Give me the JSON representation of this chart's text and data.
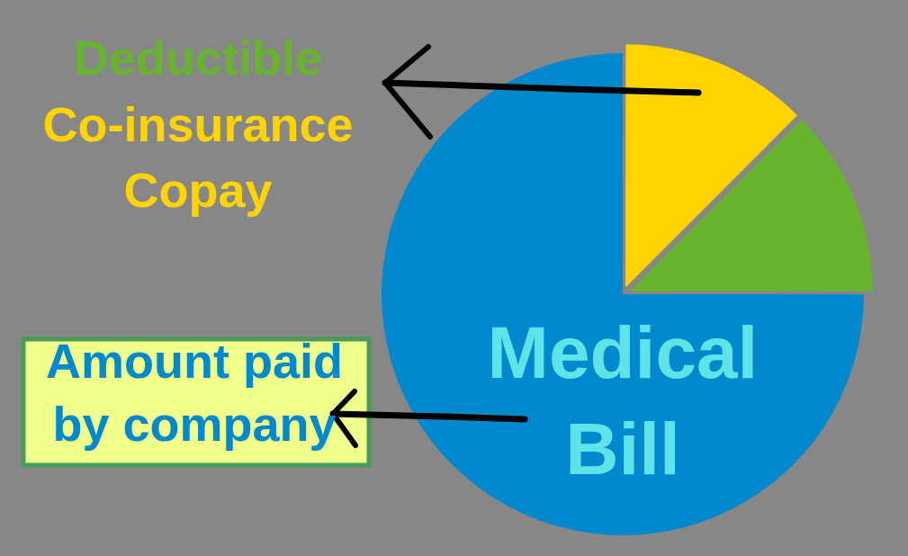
{
  "chart_data": {
    "type": "pie",
    "title": "Medical Bill",
    "categories": [
      null,
      null,
      "Amount paid by company"
    ],
    "values": [
      12.5,
      12.5,
      75
    ],
    "colors": [
      "#ffd400",
      "#69b42e",
      "#0288cc"
    ],
    "annotations": [
      "Deductible",
      "Co-insurance",
      "Copay"
    ],
    "legend": false
  }
}
